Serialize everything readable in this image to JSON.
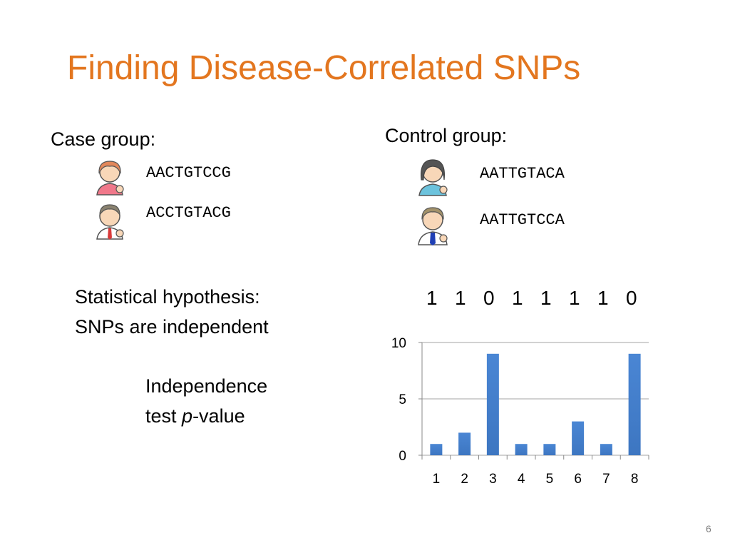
{
  "slide": {
    "title": "Finding Disease-Correlated SNPs",
    "page_number": "6"
  },
  "case_group": {
    "label": "Case group:",
    "sequences": [
      "AACTGTCCG",
      "ACCTGTACG"
    ]
  },
  "control_group": {
    "label": "Control group:",
    "sequences": [
      "AATTGTACA",
      "AATTGTCCA"
    ]
  },
  "hypothesis": {
    "line1": "Statistical hypothesis:",
    "line2": "SNPs are independent"
  },
  "test": {
    "line1": "Independence",
    "line2_prefix": "test ",
    "line2_italic": "p",
    "line2_suffix": "-value"
  },
  "bits": [
    "1",
    "1",
    "0",
    "1",
    "1",
    "1",
    "1",
    "0"
  ],
  "colors": {
    "title": "#e3761f",
    "bar": "#3d76c1",
    "grid": "#a6a6a6"
  },
  "icons": {
    "case_person_1": "woman-avatar-icon",
    "case_person_2": "man-avatar-icon",
    "control_person_1": "woman-avatar-icon",
    "control_person_2": "man-avatar-icon"
  },
  "chart_data": {
    "type": "bar",
    "categories": [
      "1",
      "2",
      "3",
      "4",
      "5",
      "6",
      "7",
      "8"
    ],
    "values": [
      1,
      2,
      9,
      1,
      1,
      3,
      1,
      9
    ],
    "ylim": [
      0,
      10
    ],
    "yticks": [
      "0",
      "5",
      "10"
    ],
    "grid": true,
    "legend": "none"
  }
}
